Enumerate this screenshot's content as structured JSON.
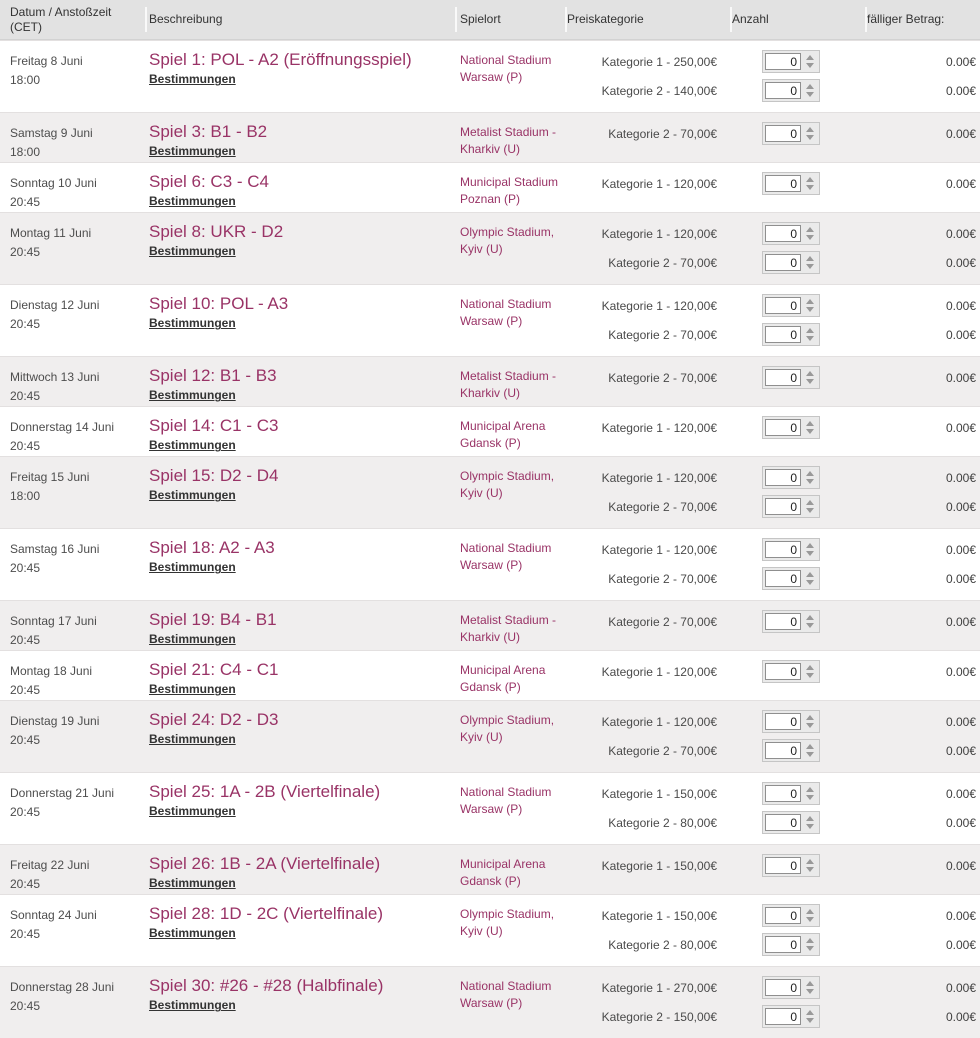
{
  "header": {
    "columns": [
      "Datum / Anstoßzeit (CET)",
      "Beschreibung",
      "Spielort",
      "Preiskategorie",
      "Anzahl",
      "fälliger Betrag:"
    ]
  },
  "colors": {
    "accent_purple": "#993366",
    "header_bg": "#e2e2e2",
    "alt_row_bg": "#f0eeee",
    "link_text": "#333333"
  },
  "rows": [
    {
      "date": "Freitag 8 Juni",
      "time": "18:00",
      "match": "Spiel 1: POL - A2 (Eröffnungsspiel)",
      "terms_label": "Bestimmungen",
      "venue": "National Stadium Warsaw (P)",
      "prices": [
        {
          "category": "Kategorie 1 - 250,00€",
          "qty": "0",
          "amount": "0.00€"
        },
        {
          "category": "Kategorie 2 - 140,00€",
          "qty": "0",
          "amount": "0.00€"
        }
      ]
    },
    {
      "date": "Samstag 9 Juni",
      "time": "18:00",
      "match": "Spiel 3: B1 - B2",
      "terms_label": "Bestimmungen",
      "venue": "Metalist Stadium - Kharkiv (U)",
      "prices": [
        {
          "category": "Kategorie 2 - 70,00€",
          "qty": "0",
          "amount": "0.00€"
        }
      ]
    },
    {
      "date": "Sonntag 10 Juni",
      "time": "20:45",
      "match": "Spiel 6: C3 - C4",
      "terms_label": "Bestimmungen",
      "venue": "Municipal Stadium Poznan (P)",
      "prices": [
        {
          "category": "Kategorie 1 - 120,00€",
          "qty": "0",
          "amount": "0.00€"
        }
      ]
    },
    {
      "date": "Montag 11 Juni",
      "time": "20:45",
      "match": "Spiel 8: UKR - D2",
      "terms_label": "Bestimmungen",
      "venue": "Olympic Stadium, Kyiv (U)",
      "prices": [
        {
          "category": "Kategorie 1 - 120,00€",
          "qty": "0",
          "amount": "0.00€"
        },
        {
          "category": "Kategorie 2 - 70,00€",
          "qty": "0",
          "amount": "0.00€"
        }
      ]
    },
    {
      "date": "Dienstag 12 Juni",
      "time": "20:45",
      "match": "Spiel 10: POL - A3",
      "terms_label": "Bestimmungen",
      "venue": "National Stadium Warsaw (P)",
      "prices": [
        {
          "category": "Kategorie 1 - 120,00€",
          "qty": "0",
          "amount": "0.00€"
        },
        {
          "category": "Kategorie 2 - 70,00€",
          "qty": "0",
          "amount": "0.00€"
        }
      ]
    },
    {
      "date": "Mittwoch 13 Juni",
      "time": "20:45",
      "match": "Spiel 12: B1 - B3",
      "terms_label": "Bestimmungen",
      "venue": "Metalist Stadium - Kharkiv (U)",
      "prices": [
        {
          "category": "Kategorie 2 - 70,00€",
          "qty": "0",
          "amount": "0.00€"
        }
      ]
    },
    {
      "date": "Donnerstag 14 Juni",
      "time": "20:45",
      "match": "Spiel 14: C1 - C3",
      "terms_label": "Bestimmungen",
      "venue": "Municipal Arena Gdansk (P)",
      "prices": [
        {
          "category": "Kategorie 1 - 120,00€",
          "qty": "0",
          "amount": "0.00€"
        }
      ]
    },
    {
      "date": "Freitag 15 Juni",
      "time": "18:00",
      "match": "Spiel 15: D2 - D4",
      "terms_label": "Bestimmungen",
      "venue": "Olympic Stadium, Kyiv (U)",
      "prices": [
        {
          "category": "Kategorie 1 - 120,00€",
          "qty": "0",
          "amount": "0.00€"
        },
        {
          "category": "Kategorie 2 - 70,00€",
          "qty": "0",
          "amount": "0.00€"
        }
      ]
    },
    {
      "date": "Samstag 16 Juni",
      "time": "20:45",
      "match": "Spiel 18: A2 - A3",
      "terms_label": "Bestimmungen",
      "venue": "National Stadium Warsaw (P)",
      "prices": [
        {
          "category": "Kategorie 1 - 120,00€",
          "qty": "0",
          "amount": "0.00€"
        },
        {
          "category": "Kategorie 2 - 70,00€",
          "qty": "0",
          "amount": "0.00€"
        }
      ]
    },
    {
      "date": "Sonntag 17 Juni",
      "time": "20:45",
      "match": "Spiel 19: B4 - B1",
      "terms_label": "Bestimmungen",
      "venue": "Metalist Stadium - Kharkiv (U)",
      "prices": [
        {
          "category": "Kategorie 2 - 70,00€",
          "qty": "0",
          "amount": "0.00€"
        }
      ]
    },
    {
      "date": "Montag 18 Juni",
      "time": "20:45",
      "match": "Spiel 21: C4 - C1",
      "terms_label": "Bestimmungen",
      "venue": "Municipal Arena Gdansk (P)",
      "prices": [
        {
          "category": "Kategorie 1 - 120,00€",
          "qty": "0",
          "amount": "0.00€"
        }
      ]
    },
    {
      "date": "Dienstag 19 Juni",
      "time": "20:45",
      "match": "Spiel 24: D2 - D3",
      "terms_label": "Bestimmungen",
      "venue": "Olympic Stadium, Kyiv (U)",
      "prices": [
        {
          "category": "Kategorie 1 - 120,00€",
          "qty": "0",
          "amount": "0.00€"
        },
        {
          "category": "Kategorie 2 - 70,00€",
          "qty": "0",
          "amount": "0.00€"
        }
      ]
    },
    {
      "date": "Donnerstag 21 Juni",
      "time": "20:45",
      "match": "Spiel 25: 1A - 2B (Viertelfinale)",
      "terms_label": "Bestimmungen",
      "venue": "National Stadium Warsaw (P)",
      "prices": [
        {
          "category": "Kategorie 1 - 150,00€",
          "qty": "0",
          "amount": "0.00€"
        },
        {
          "category": "Kategorie 2 - 80,00€",
          "qty": "0",
          "amount": "0.00€"
        }
      ]
    },
    {
      "date": "Freitag 22 Juni",
      "time": "20:45",
      "match": "Spiel 26: 1B - 2A (Viertelfinale)",
      "terms_label": "Bestimmungen",
      "venue": "Municipal Arena Gdansk (P)",
      "prices": [
        {
          "category": "Kategorie 1 - 150,00€",
          "qty": "0",
          "amount": "0.00€"
        }
      ]
    },
    {
      "date": "Sonntag 24 Juni",
      "time": "20:45",
      "match": "Spiel 28: 1D - 2C (Viertelfinale)",
      "terms_label": "Bestimmungen",
      "venue": "Olympic Stadium, Kyiv (U)",
      "prices": [
        {
          "category": "Kategorie 1 - 150,00€",
          "qty": "0",
          "amount": "0.00€"
        },
        {
          "category": "Kategorie 2 - 80,00€",
          "qty": "0",
          "amount": "0.00€"
        }
      ]
    },
    {
      "date": "Donnerstag 28 Juni",
      "time": "20:45",
      "match": "Spiel 30: #26 - #28 (Halbfinale)",
      "terms_label": "Bestimmungen",
      "venue": "National Stadium Warsaw (P)",
      "prices": [
        {
          "category": "Kategorie 1 - 270,00€",
          "qty": "0",
          "amount": "0.00€"
        },
        {
          "category": "Kategorie 2 - 150,00€",
          "qty": "0",
          "amount": "0.00€"
        }
      ]
    }
  ]
}
